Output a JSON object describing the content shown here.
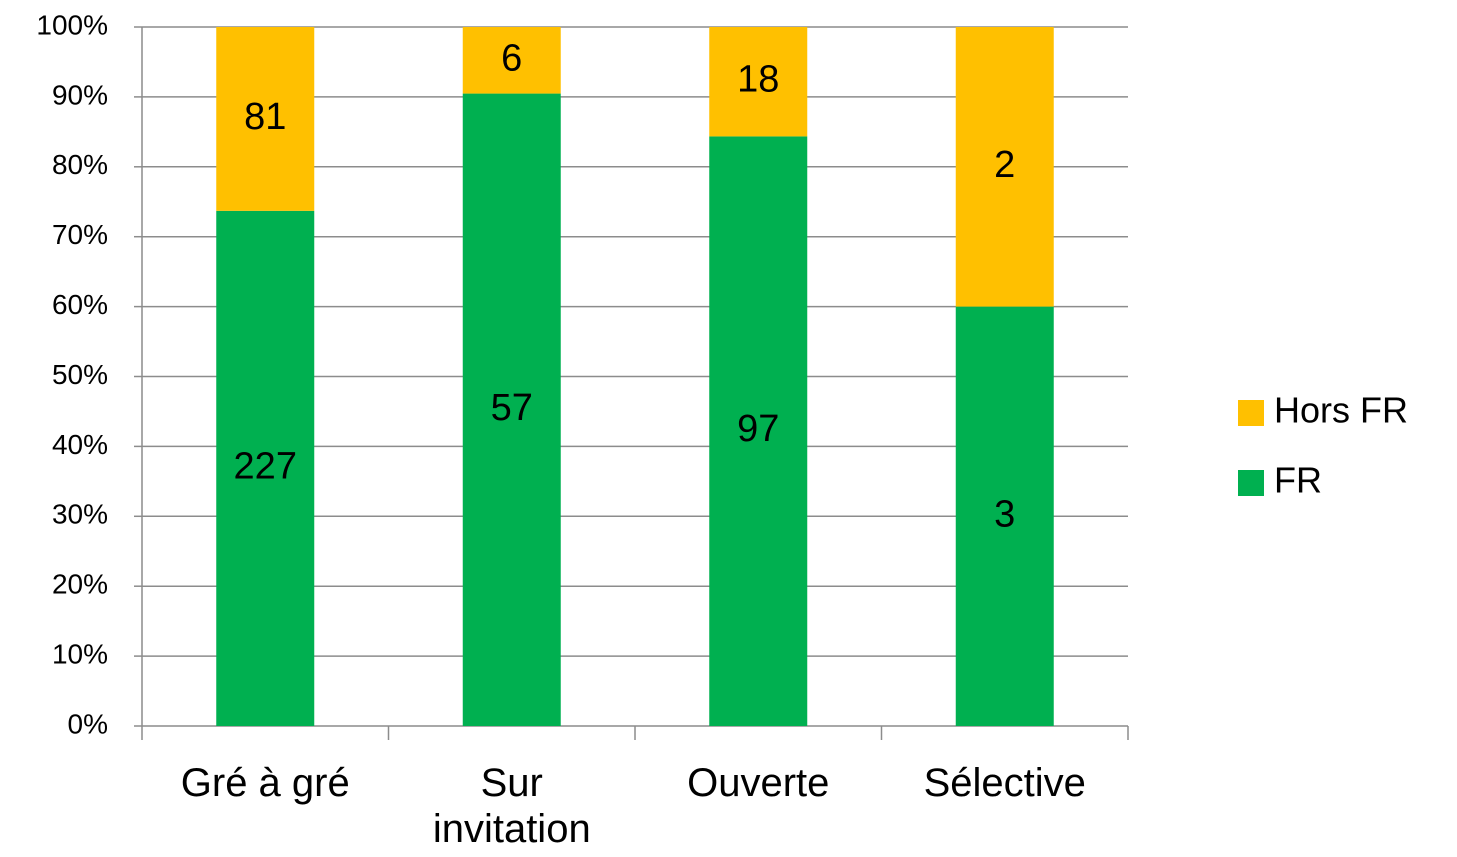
{
  "chart_data": {
    "type": "bar",
    "stacking": "percent",
    "categories": [
      "Gré à gré",
      "Sur invitation",
      "Ouverte",
      "Sélective"
    ],
    "series": [
      {
        "name": "FR",
        "color": "#00b050",
        "values": [
          227,
          57,
          97,
          3
        ]
      },
      {
        "name": "Hors FR",
        "color": "#ffc000",
        "values": [
          81,
          6,
          18,
          2
        ]
      }
    ],
    "ylim": [
      0,
      100
    ],
    "yticks": [
      {
        "value": 0,
        "label": "0%"
      },
      {
        "value": 10,
        "label": "10%"
      },
      {
        "value": 20,
        "label": "20%"
      },
      {
        "value": 30,
        "label": "30%"
      },
      {
        "value": 40,
        "label": "40%"
      },
      {
        "value": 50,
        "label": "50%"
      },
      {
        "value": 60,
        "label": "60%"
      },
      {
        "value": 70,
        "label": "70%"
      },
      {
        "value": 80,
        "label": "80%"
      },
      {
        "value": 90,
        "label": "90%"
      },
      {
        "value": 100,
        "label": "100%"
      }
    ],
    "grid": true,
    "legend": "right"
  }
}
